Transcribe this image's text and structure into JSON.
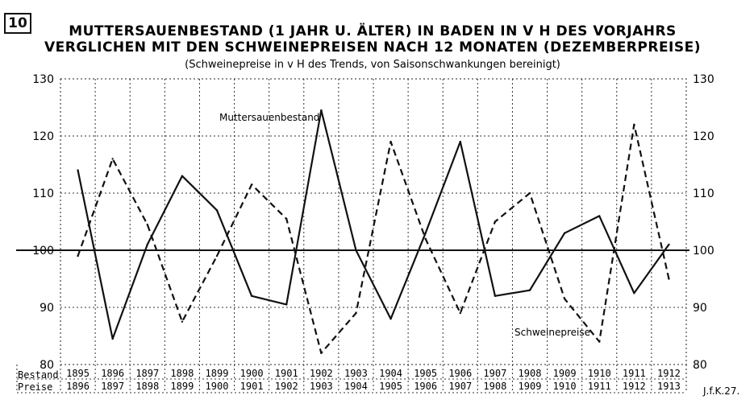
{
  "figure_number": "10",
  "signature": "J.f.K.27.",
  "chart_data": {
    "type": "line",
    "title_lines": [
      "MUTTERSAUENBESTAND (1 JAHR U. ÄLTER) IN BADEN IN V H DES VORJAHRS",
      "VERGLICHEN MIT DEN SCHWEINEPREISEN NACH 12 MONATEN (DEZEMBERPREISE)"
    ],
    "subtitle": "(Schweinepreise in v H des Trends, von Saisonschwankungen bereinigt)",
    "row_labels": [
      "Bestand",
      "Preise"
    ],
    "x_bestand": [
      "1895",
      "1896",
      "1897",
      "1898",
      "1899",
      "1900",
      "1901",
      "1902",
      "1903",
      "1904",
      "1905",
      "1906",
      "1907",
      "1908",
      "1909",
      "1910",
      "1911",
      "1912"
    ],
    "x_preise": [
      "1896",
      "1897",
      "1898",
      "1899",
      "1900",
      "1901",
      "1902",
      "1903",
      "1904",
      "1905",
      "1906",
      "1907",
      "1908",
      "1909",
      "1910",
      "1911",
      "1912",
      "1913"
    ],
    "ylim": [
      80,
      130
    ],
    "yticks": [
      80,
      90,
      100,
      110,
      120,
      130
    ],
    "reference_line": 100,
    "grid": true,
    "series": [
      {
        "name": "Muttersauenbestand",
        "style": "solid",
        "values": [
          114,
          84.5,
          101,
          113,
          107,
          92,
          90.5,
          124.5,
          100,
          88,
          103,
          119,
          92,
          93,
          103,
          106,
          92.5,
          101
        ]
      },
      {
        "name": "Schweinepreise",
        "style": "dashed",
        "values": [
          99,
          116,
          104.5,
          87.5,
          99,
          111.5,
          105.5,
          82,
          89,
          119,
          102,
          89,
          105,
          110,
          91.5,
          84,
          122,
          95
        ]
      }
    ]
  }
}
